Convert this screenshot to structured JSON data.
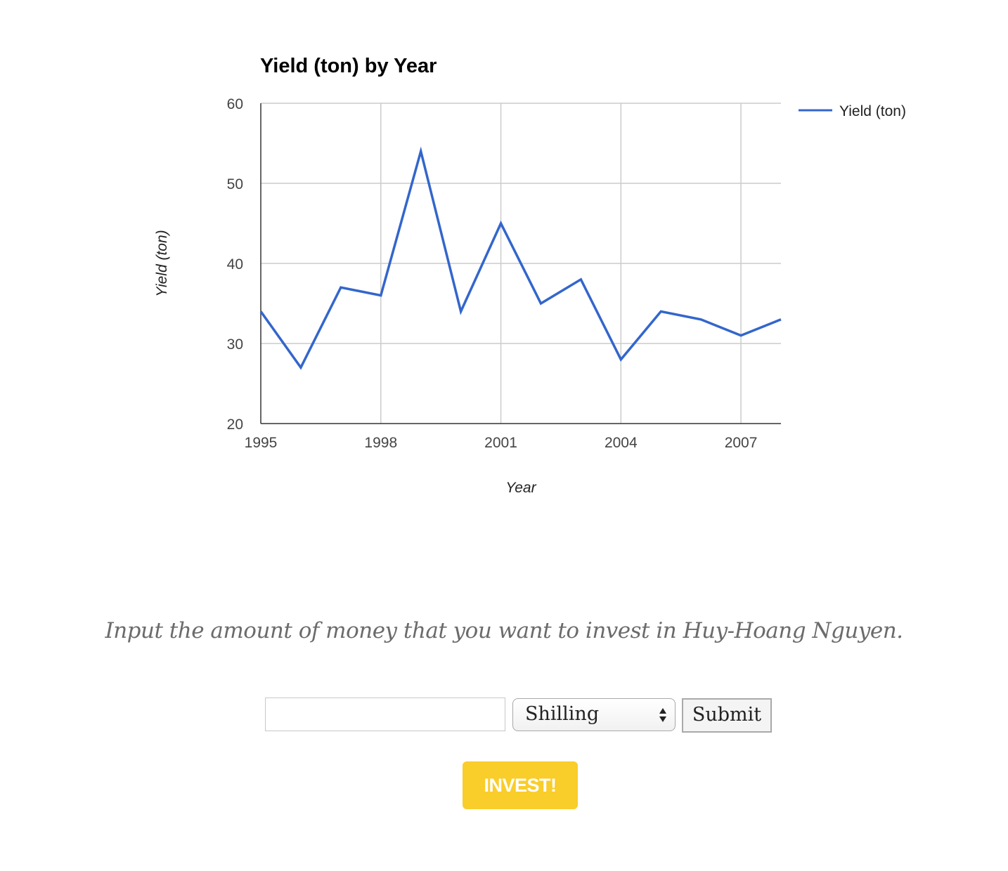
{
  "chart_data": {
    "type": "line",
    "title": "Yield (ton) by Year",
    "xlabel": "Year",
    "ylabel": "Yield (ton)",
    "x": [
      1995,
      1996,
      1997,
      1998,
      1999,
      2000,
      2001,
      2002,
      2003,
      2004,
      2005,
      2006,
      2007,
      2008
    ],
    "series": [
      {
        "name": "Yield (ton)",
        "values": [
          34,
          27,
          37,
          36,
          54,
          34,
          45,
          35,
          38,
          28,
          34,
          33,
          31,
          33
        ]
      }
    ],
    "xlim": [
      1995,
      2008
    ],
    "ylim": [
      20,
      60
    ],
    "xticks": [
      "1995",
      "1998",
      "2001",
      "2004",
      "2007"
    ],
    "yticks": [
      "20",
      "30",
      "40",
      "50",
      "60"
    ],
    "grid": true,
    "legend": "top-right",
    "line_color": "#3366cc"
  },
  "investment": {
    "prompt": "Input the amount of money that you want to invest in Huy-Hoang Nguyen.",
    "amount_value": "",
    "currency_selected": "Shilling",
    "submit_label": "Submit",
    "invest_label": "INVEST!",
    "invest_color": "#f9cd2a"
  }
}
